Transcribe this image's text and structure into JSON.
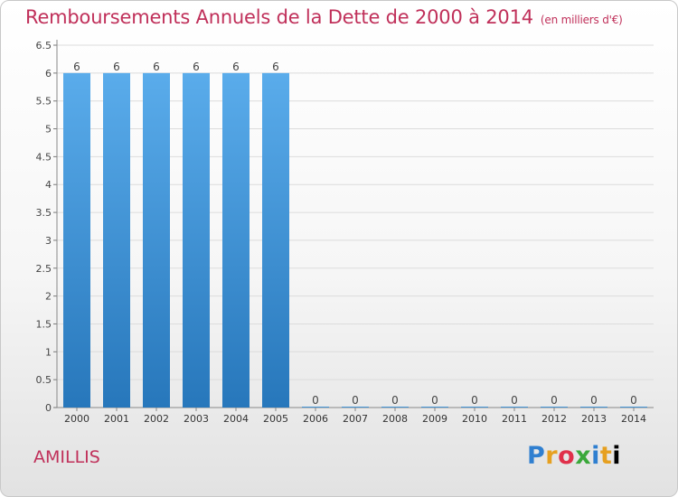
{
  "header": {
    "title": "Remboursements Annuels de la Dette de 2000 à 2014",
    "subtitle": "(en milliers d'€)"
  },
  "footer": {
    "town": "AMILLIS",
    "logo": "Proxiti"
  },
  "colors": {
    "title": "#c0305a",
    "bar_top": "#5aaceb",
    "bar_bottom": "#2777bb",
    "grid": "#dcdcdc"
  },
  "chart_data": {
    "type": "bar",
    "title": "Remboursements Annuels de la Dette de 2000 à 2014",
    "subtitle": "(en milliers d'€)",
    "categories": [
      "2000",
      "2001",
      "2002",
      "2003",
      "2004",
      "2005",
      "2006",
      "2007",
      "2008",
      "2009",
      "2010",
      "2011",
      "2012",
      "2013",
      "2014"
    ],
    "values": [
      6,
      6,
      6,
      6,
      6,
      6,
      0,
      0,
      0,
      0,
      0,
      0,
      0,
      0,
      0
    ],
    "data_labels": [
      "6",
      "6",
      "6",
      "6",
      "6",
      "6",
      "0",
      "0",
      "0",
      "0",
      "0",
      "0",
      "0",
      "0",
      "0"
    ],
    "yticks": [
      0,
      0.5,
      1,
      1.5,
      2,
      2.5,
      3,
      3.5,
      4,
      4.5,
      5,
      5.5,
      6,
      6.5
    ],
    "ytick_labels": [
      "0",
      "0.5",
      "1",
      "1.5",
      "2",
      "2.5",
      "3",
      "3.5",
      "4",
      "4.5",
      "5",
      "5.5",
      "6",
      "6.5"
    ],
    "ylim": [
      0,
      6.5
    ],
    "grid": true,
    "legend": "none"
  }
}
